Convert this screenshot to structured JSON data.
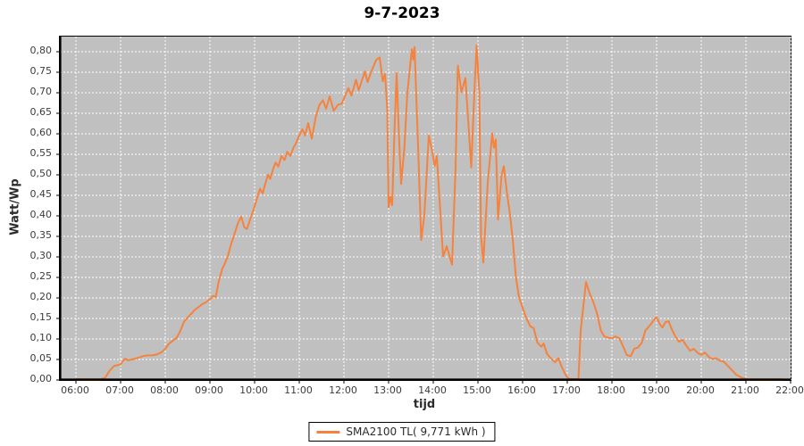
{
  "title": "9-7-2023",
  "chart_data": {
    "type": "line",
    "title": "9-7-2023",
    "xlabel": "tijd",
    "ylabel": "Watt/Wp",
    "x_ticks": [
      "06:00",
      "07:00",
      "08:00",
      "09:00",
      "10:00",
      "11:00",
      "12:00",
      "13:00",
      "14:00",
      "15:00",
      "16:00",
      "17:00",
      "18:00",
      "19:00",
      "20:00",
      "21:00",
      "22:00"
    ],
    "x_range_hours": [
      6,
      22
    ],
    "y_ticks": [
      "0,00",
      "0,05",
      "0,10",
      "0,15",
      "0,20",
      "0,25",
      "0,30",
      "0,35",
      "0,40",
      "0,45",
      "0,50",
      "0,55",
      "0,60",
      "0,65",
      "0,70",
      "0,75",
      "0,80"
    ],
    "y_range": [
      0,
      0.8
    ],
    "y_tick_step": 0.05,
    "grid": "white dashed on gray plot background",
    "legend_position": "bottom-center",
    "colors": {
      "series": "#F5823D",
      "plot_bg": "#C0C0C0",
      "grid": "#FFFFFF",
      "axis": "#000000",
      "tick_label": "#3C3C3C",
      "title": "#000000",
      "outer_bg": "#FFFFFF"
    },
    "series": [
      {
        "name": "SMA2100 TL( 9,771 kWh )",
        "color": "#F5823D",
        "points": [
          [
            6.0,
            0.002
          ],
          [
            6.3,
            0.002
          ],
          [
            6.55,
            0.002
          ],
          [
            6.65,
            0.005
          ],
          [
            6.75,
            0.022
          ],
          [
            6.85,
            0.034
          ],
          [
            7.0,
            0.038
          ],
          [
            7.05,
            0.046
          ],
          [
            7.1,
            0.052
          ],
          [
            7.17,
            0.048
          ],
          [
            7.25,
            0.05
          ],
          [
            7.33,
            0.052
          ],
          [
            7.42,
            0.055
          ],
          [
            7.5,
            0.058
          ],
          [
            7.6,
            0.06
          ],
          [
            7.72,
            0.06
          ],
          [
            7.83,
            0.063
          ],
          [
            7.92,
            0.068
          ],
          [
            8.0,
            0.076
          ],
          [
            8.08,
            0.088
          ],
          [
            8.17,
            0.096
          ],
          [
            8.25,
            0.102
          ],
          [
            8.33,
            0.118
          ],
          [
            8.42,
            0.142
          ],
          [
            8.5,
            0.152
          ],
          [
            8.58,
            0.161
          ],
          [
            8.67,
            0.172
          ],
          [
            8.75,
            0.178
          ],
          [
            8.83,
            0.185
          ],
          [
            8.92,
            0.19
          ],
          [
            9.0,
            0.197
          ],
          [
            9.07,
            0.205
          ],
          [
            9.13,
            0.202
          ],
          [
            9.2,
            0.242
          ],
          [
            9.28,
            0.272
          ],
          [
            9.33,
            0.283
          ],
          [
            9.4,
            0.301
          ],
          [
            9.47,
            0.33
          ],
          [
            9.55,
            0.356
          ],
          [
            9.63,
            0.383
          ],
          [
            9.7,
            0.398
          ],
          [
            9.77,
            0.372
          ],
          [
            9.83,
            0.368
          ],
          [
            9.9,
            0.391
          ],
          [
            9.97,
            0.413
          ],
          [
            10.05,
            0.441
          ],
          [
            10.12,
            0.466
          ],
          [
            10.18,
            0.455
          ],
          [
            10.25,
            0.482
          ],
          [
            10.3,
            0.5
          ],
          [
            10.35,
            0.49
          ],
          [
            10.42,
            0.516
          ],
          [
            10.47,
            0.53
          ],
          [
            10.53,
            0.52
          ],
          [
            10.6,
            0.546
          ],
          [
            10.67,
            0.536
          ],
          [
            10.73,
            0.556
          ],
          [
            10.8,
            0.546
          ],
          [
            10.87,
            0.566
          ],
          [
            10.93,
            0.578
          ],
          [
            11.0,
            0.596
          ],
          [
            11.07,
            0.611
          ],
          [
            11.13,
            0.596
          ],
          [
            11.2,
            0.626
          ],
          [
            11.28,
            0.588
          ],
          [
            11.37,
            0.641
          ],
          [
            11.45,
            0.67
          ],
          [
            11.53,
            0.682
          ],
          [
            11.6,
            0.661
          ],
          [
            11.68,
            0.691
          ],
          [
            11.77,
            0.656
          ],
          [
            11.87,
            0.671
          ],
          [
            11.95,
            0.673
          ],
          [
            12.02,
            0.691
          ],
          [
            12.1,
            0.711
          ],
          [
            12.17,
            0.693
          ],
          [
            12.27,
            0.732
          ],
          [
            12.33,
            0.706
          ],
          [
            12.47,
            0.752
          ],
          [
            12.53,
            0.726
          ],
          [
            12.6,
            0.748
          ],
          [
            12.72,
            0.78
          ],
          [
            12.8,
            0.786
          ],
          [
            12.87,
            0.728
          ],
          [
            12.92,
            0.746
          ],
          [
            12.97,
            0.66
          ],
          [
            13.0,
            0.421
          ],
          [
            13.04,
            0.446
          ],
          [
            13.08,
            0.426
          ],
          [
            13.13,
            0.601
          ],
          [
            13.18,
            0.748
          ],
          [
            13.23,
            0.6
          ],
          [
            13.28,
            0.478
          ],
          [
            13.35,
            0.561
          ],
          [
            13.42,
            0.7
          ],
          [
            13.52,
            0.806
          ],
          [
            13.55,
            0.781
          ],
          [
            13.58,
            0.811
          ],
          [
            13.65,
            0.601
          ],
          [
            13.73,
            0.341
          ],
          [
            13.8,
            0.401
          ],
          [
            13.9,
            0.596
          ],
          [
            13.97,
            0.561
          ],
          [
            14.03,
            0.521
          ],
          [
            14.08,
            0.546
          ],
          [
            14.22,
            0.301
          ],
          [
            14.3,
            0.326
          ],
          [
            14.42,
            0.281
          ],
          [
            14.5,
            0.52
          ],
          [
            14.55,
            0.766
          ],
          [
            14.63,
            0.701
          ],
          [
            14.72,
            0.736
          ],
          [
            14.85,
            0.518
          ],
          [
            14.92,
            0.701
          ],
          [
            14.97,
            0.816
          ],
          [
            15.03,
            0.7
          ],
          [
            15.07,
            0.351
          ],
          [
            15.12,
            0.286
          ],
          [
            15.22,
            0.481
          ],
          [
            15.32,
            0.601
          ],
          [
            15.36,
            0.566
          ],
          [
            15.4,
            0.586
          ],
          [
            15.45,
            0.391
          ],
          [
            15.53,
            0.5
          ],
          [
            15.58,
            0.521
          ],
          [
            15.65,
            0.456
          ],
          [
            15.72,
            0.401
          ],
          [
            15.78,
            0.341
          ],
          [
            15.85,
            0.251
          ],
          [
            15.92,
            0.201
          ],
          [
            16.0,
            0.176
          ],
          [
            16.08,
            0.151
          ],
          [
            16.17,
            0.131
          ],
          [
            16.25,
            0.126
          ],
          [
            16.33,
            0.091
          ],
          [
            16.42,
            0.081
          ],
          [
            16.47,
            0.089
          ],
          [
            16.55,
            0.063
          ],
          [
            16.65,
            0.051
          ],
          [
            16.73,
            0.043
          ],
          [
            16.8,
            0.053
          ],
          [
            16.88,
            0.031
          ],
          [
            16.97,
            0.011
          ],
          [
            17.03,
            0.003
          ],
          [
            17.12,
            0.002
          ],
          [
            17.25,
            0.002
          ],
          [
            17.3,
            0.12
          ],
          [
            17.42,
            0.239
          ],
          [
            17.5,
            0.211
          ],
          [
            17.58,
            0.191
          ],
          [
            17.67,
            0.161
          ],
          [
            17.75,
            0.121
          ],
          [
            17.83,
            0.106
          ],
          [
            17.92,
            0.103
          ],
          [
            18.0,
            0.102
          ],
          [
            18.08,
            0.106
          ],
          [
            18.17,
            0.101
          ],
          [
            18.25,
            0.082
          ],
          [
            18.33,
            0.061
          ],
          [
            18.42,
            0.058
          ],
          [
            18.5,
            0.076
          ],
          [
            18.58,
            0.079
          ],
          [
            18.67,
            0.091
          ],
          [
            18.75,
            0.121
          ],
          [
            18.85,
            0.133
          ],
          [
            18.95,
            0.148
          ],
          [
            19.0,
            0.153
          ],
          [
            19.07,
            0.136
          ],
          [
            19.13,
            0.128
          ],
          [
            19.2,
            0.141
          ],
          [
            19.27,
            0.143
          ],
          [
            19.33,
            0.126
          ],
          [
            19.42,
            0.106
          ],
          [
            19.5,
            0.093
          ],
          [
            19.58,
            0.098
          ],
          [
            19.67,
            0.083
          ],
          [
            19.75,
            0.071
          ],
          [
            19.83,
            0.076
          ],
          [
            19.92,
            0.066
          ],
          [
            20.0,
            0.061
          ],
          [
            20.08,
            0.067
          ],
          [
            20.17,
            0.056
          ],
          [
            20.25,
            0.051
          ],
          [
            20.33,
            0.053
          ],
          [
            20.42,
            0.047
          ],
          [
            20.5,
            0.045
          ],
          [
            20.58,
            0.036
          ],
          [
            20.67,
            0.026
          ],
          [
            20.78,
            0.013
          ],
          [
            20.9,
            0.006
          ],
          [
            21.0,
            0.002
          ],
          [
            21.25,
            0.002
          ],
          [
            21.55,
            0.002
          ],
          [
            21.83,
            0.002
          ]
        ]
      }
    ]
  }
}
